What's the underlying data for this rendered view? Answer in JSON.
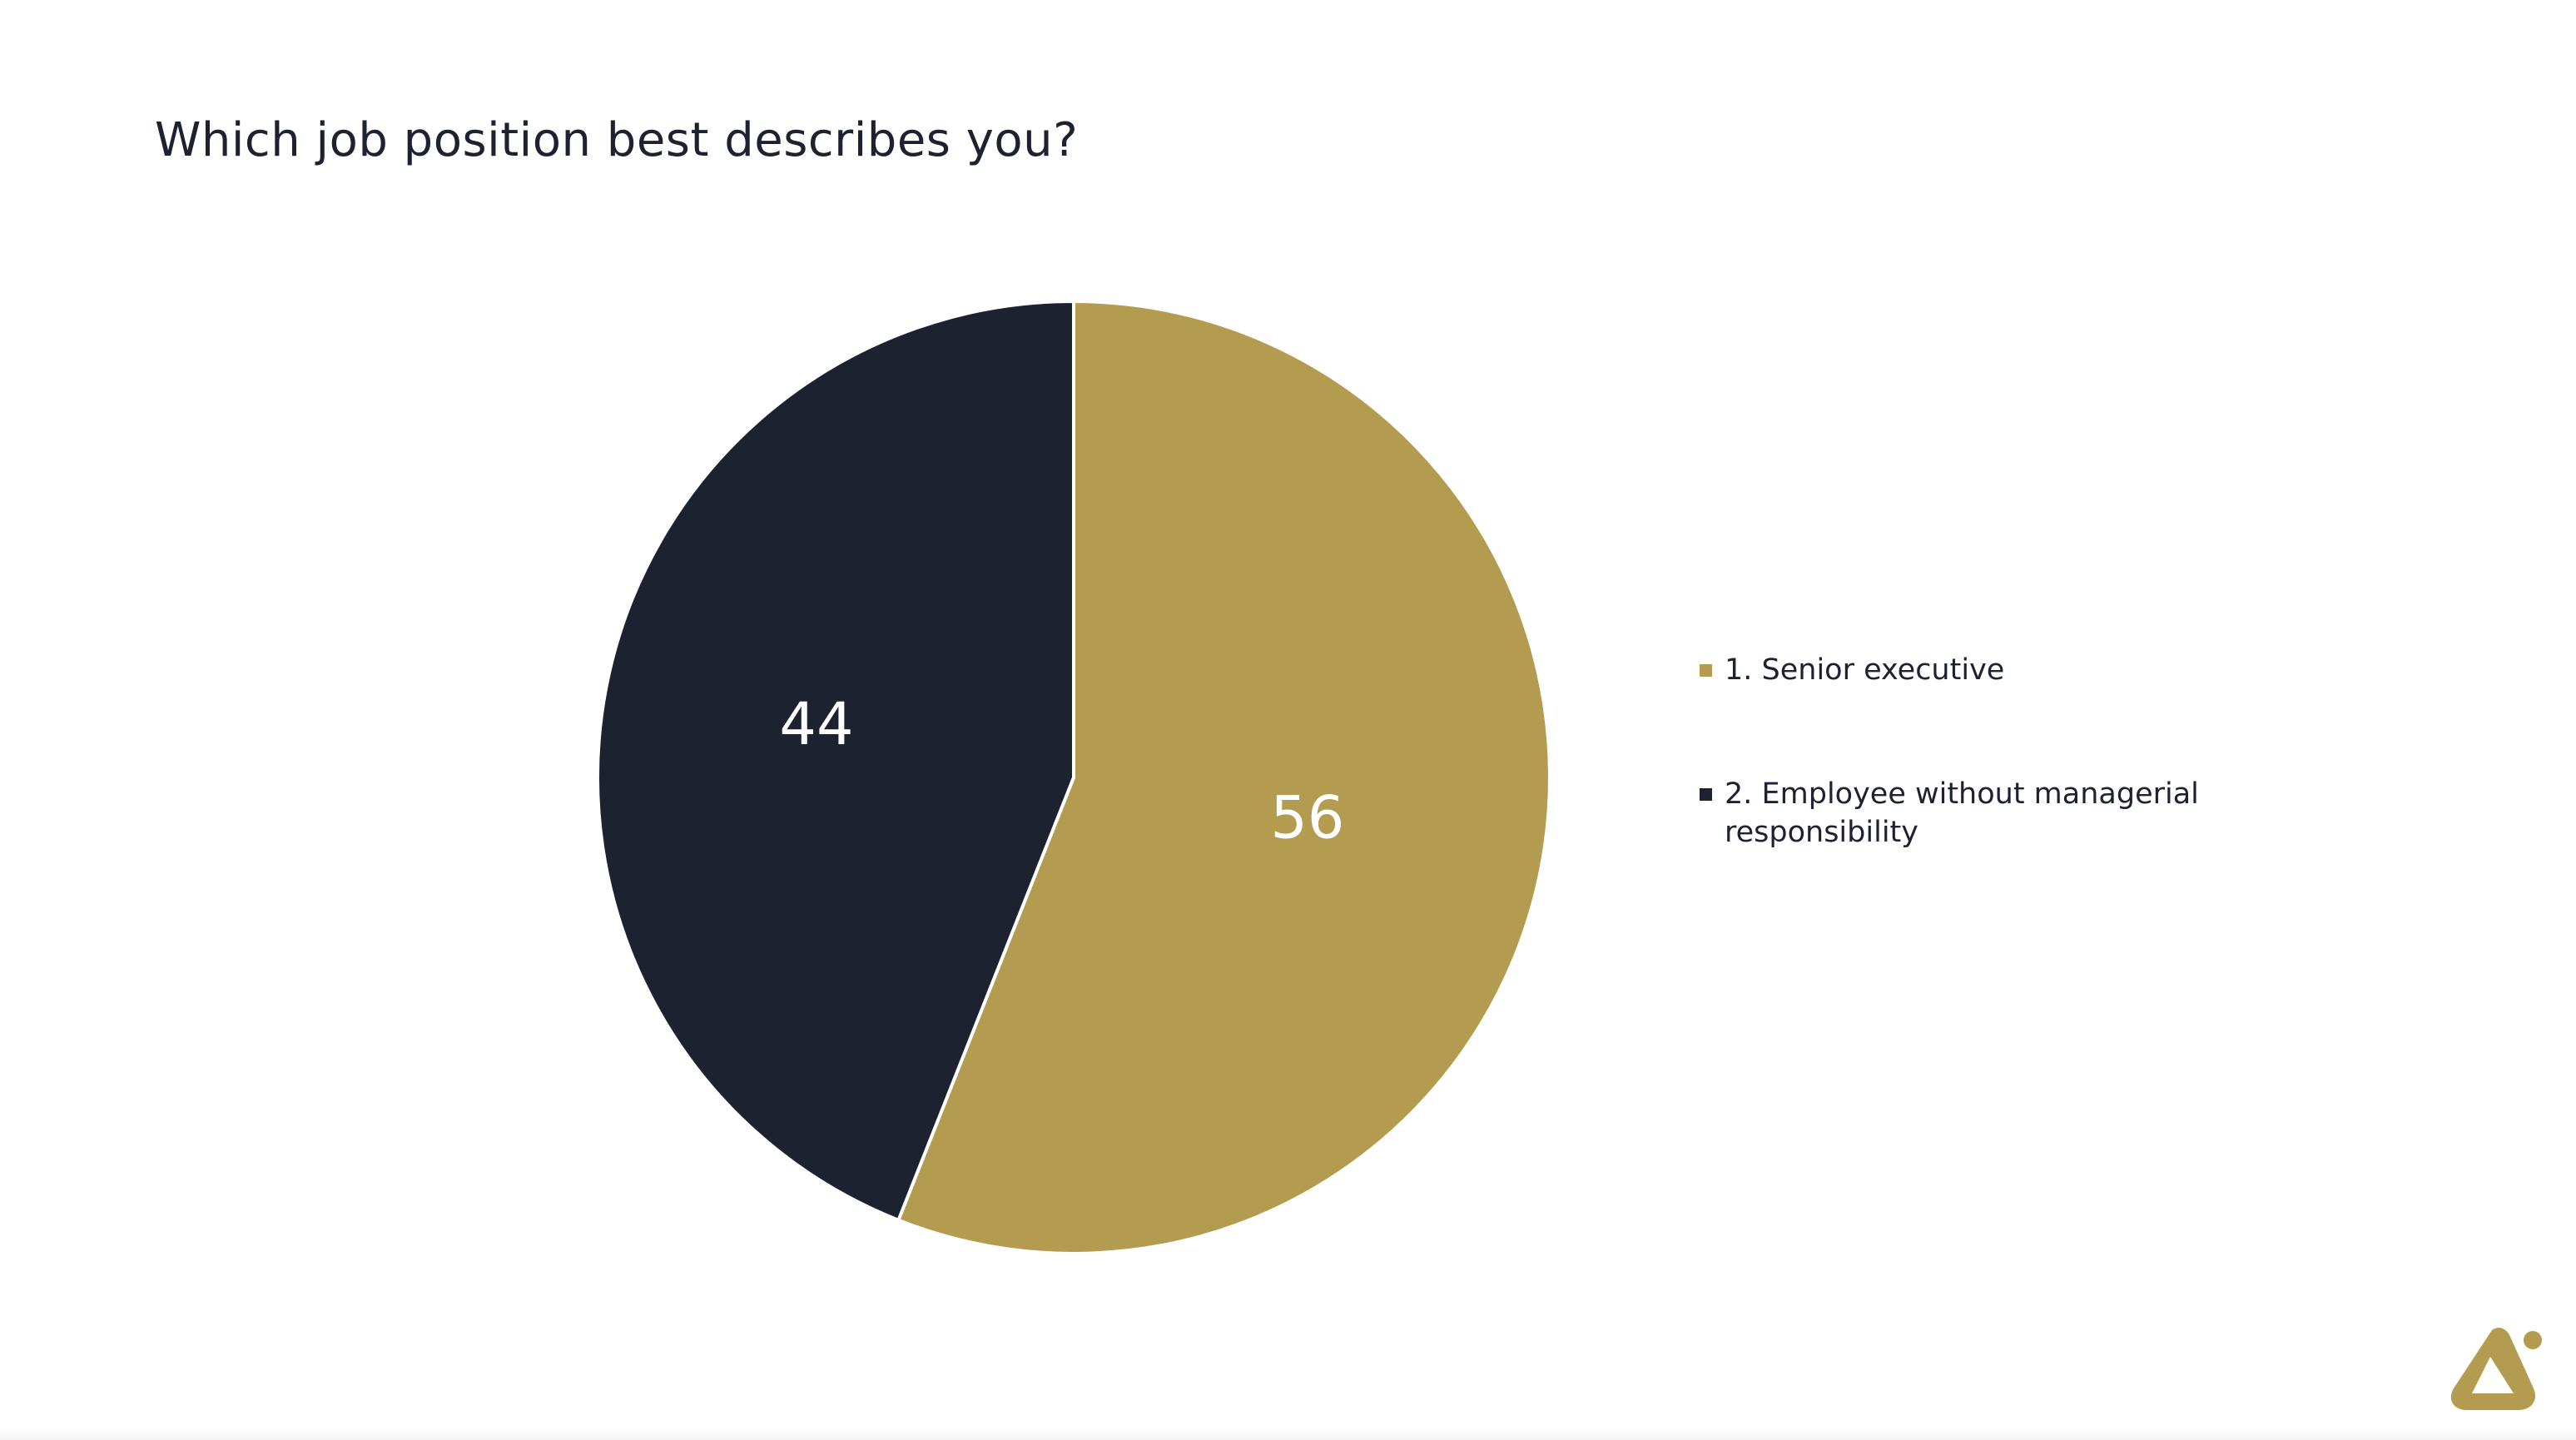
{
  "title": "Which job position best describes you?",
  "chart_data": {
    "type": "pie",
    "title": "Which job position best describes you?",
    "slices": [
      {
        "label": "1. Senior executive",
        "value": 56,
        "color": "#b39c4f",
        "data_label": "56"
      },
      {
        "label": "2. Employee without managerial responsibility",
        "value": 44,
        "color": "#1d2230",
        "data_label": "44"
      }
    ],
    "start_angle_deg": 0,
    "direction": "clockwise",
    "legend_position": "right",
    "data_label_color": "#ffffff",
    "separator_color": "#ffffff"
  },
  "colors": {
    "accent": "#b39c4f",
    "dark": "#1d2230",
    "logo": "#b39c4f"
  },
  "icons": {
    "logo": "brand-logo-icon"
  }
}
